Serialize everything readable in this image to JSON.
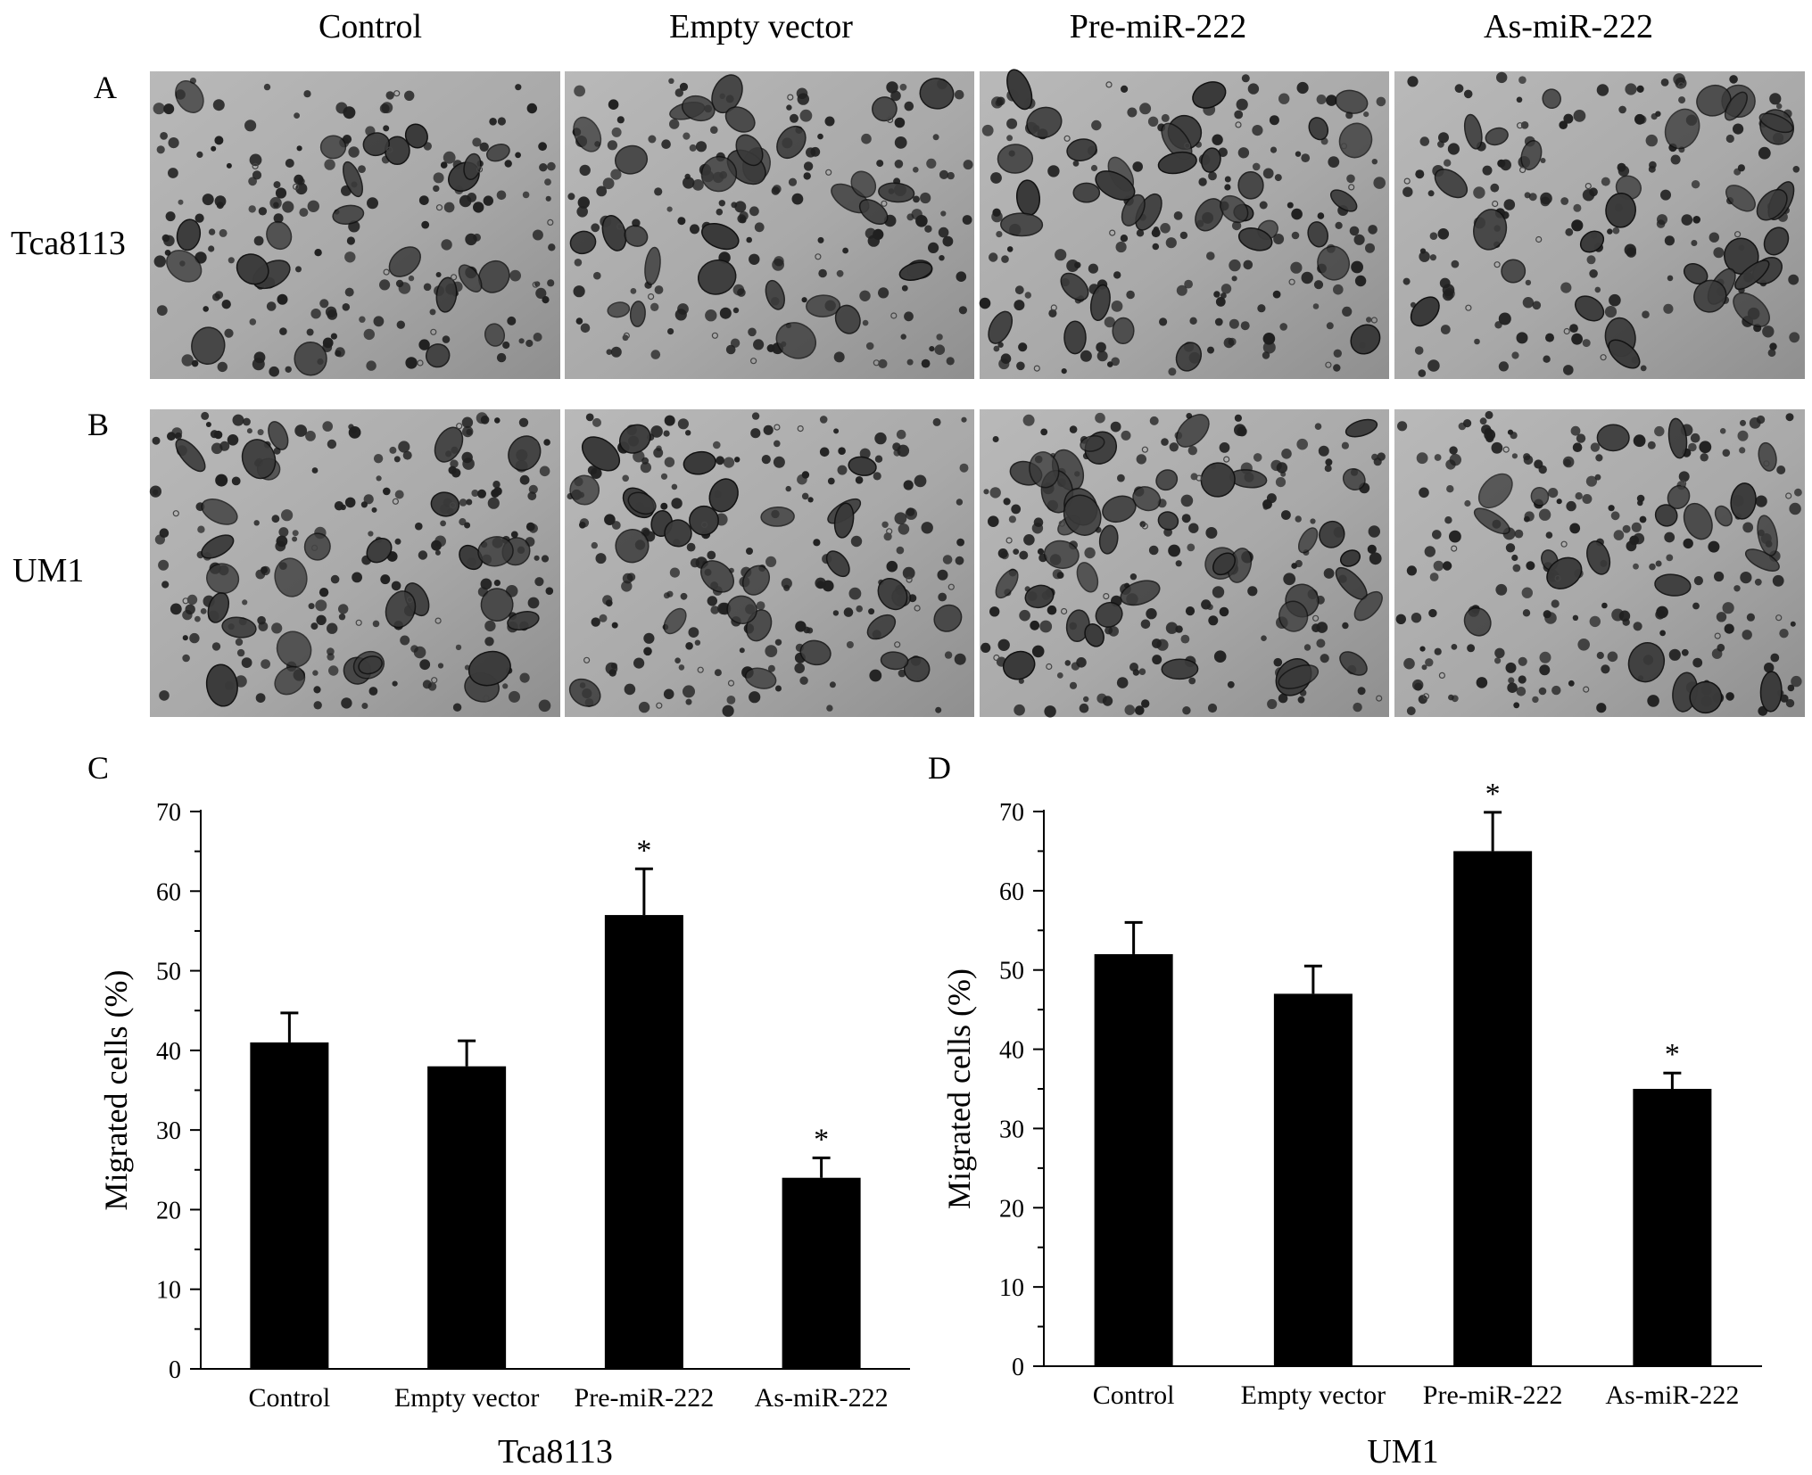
{
  "column_headers": [
    "Control",
    "Empty vector",
    "Pre-miR-222",
    "As-miR-222"
  ],
  "panel_labels": {
    "a": "A",
    "b": "B",
    "c": "C",
    "d": "D"
  },
  "row_labels": {
    "a": "Tca8113",
    "b": "UM1"
  },
  "micrograph_color": "#a6a6a6",
  "cell_stain_color": "#202020",
  "chart_data": [
    {
      "type": "bar",
      "panel": "C",
      "categories": [
        "Control",
        "Empty vector",
        "Pre-miR-222",
        "As-miR-222"
      ],
      "values": [
        41,
        38,
        57,
        24
      ],
      "errors": [
        3.7,
        3.2,
        5.8,
        2.5
      ],
      "significance": [
        "",
        "",
        "*",
        "*"
      ],
      "xlabel": "Tca8113",
      "ylabel": "Migrated cells (%)",
      "ylim": [
        0,
        70
      ],
      "yticks": [
        "0",
        "10",
        "20",
        "30",
        "40",
        "50",
        "60",
        "70"
      ],
      "bar_color": "#000000",
      "grid": false
    },
    {
      "type": "bar",
      "panel": "D",
      "categories": [
        "Control",
        "Empty vector",
        "Pre-miR-222",
        "As-miR-222"
      ],
      "values": [
        52,
        47,
        65,
        35
      ],
      "errors": [
        4.0,
        3.5,
        4.9,
        2.0
      ],
      "significance": [
        "",
        "",
        "*",
        "*"
      ],
      "xlabel": "UM1",
      "ylabel": "Migrated cells (%)",
      "ylim": [
        0,
        70
      ],
      "yticks": [
        "0",
        "10",
        "20",
        "30",
        "40",
        "50",
        "60",
        "70"
      ],
      "bar_color": "#000000",
      "grid": false
    }
  ]
}
